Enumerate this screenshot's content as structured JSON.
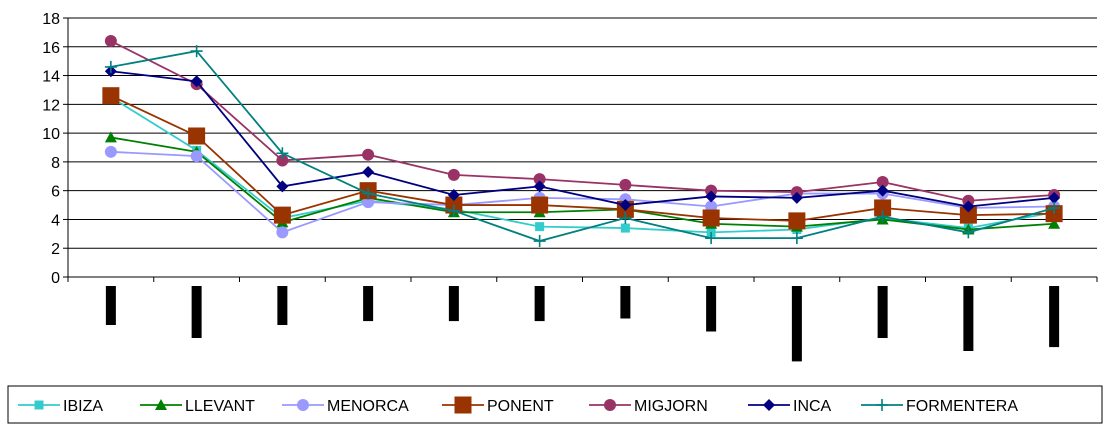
{
  "chart_data": {
    "type": "line",
    "title": "",
    "xlabel": "",
    "ylabel": "",
    "ylim": [
      0,
      18
    ],
    "yticks": [
      0,
      2,
      4,
      6,
      8,
      10,
      12,
      14,
      16,
      18
    ],
    "grid": true,
    "legend_position": "bottom",
    "x_category_count": 12,
    "category_label_bar_heights": [
      3,
      4,
      3,
      2.7,
      2.7,
      2.7,
      2.5,
      3.5,
      5.8,
      4,
      5,
      4.7
    ],
    "series": [
      {
        "name": "IBIZA",
        "color": "#33cccc",
        "marker": "square",
        "values": [
          12.5,
          8.8,
          4.1,
          5.3,
          4.7,
          3.5,
          3.4,
          3.1,
          3.3,
          4.1,
          3.4,
          4.5
        ]
      },
      {
        "name": "LLEVANT",
        "color": "#008000",
        "marker": "triangle",
        "values": [
          9.7,
          8.7,
          3.8,
          5.5,
          4.5,
          4.5,
          4.7,
          3.7,
          3.5,
          4.0,
          3.3,
          3.7
        ]
      },
      {
        "name": "MENORCA",
        "color": "#9999ff",
        "marker": "circle",
        "values": [
          8.7,
          8.4,
          3.1,
          5.2,
          5.0,
          5.5,
          5.4,
          4.9,
          5.8,
          5.8,
          4.8,
          4.9
        ]
      },
      {
        "name": "PONENT",
        "color": "#993300",
        "marker": "square-large",
        "values": [
          12.6,
          9.8,
          4.3,
          6.0,
          5.0,
          5.0,
          4.7,
          4.1,
          3.9,
          4.8,
          4.3,
          4.4
        ]
      },
      {
        "name": "MIGJORN",
        "color": "#993366",
        "marker": "circle",
        "values": [
          16.4,
          13.4,
          8.1,
          8.5,
          7.1,
          6.8,
          6.4,
          6.0,
          5.9,
          6.6,
          5.3,
          5.7
        ]
      },
      {
        "name": "INCA",
        "color": "#000080",
        "marker": "diamond",
        "values": [
          14.3,
          13.6,
          6.3,
          7.3,
          5.7,
          6.3,
          5.0,
          5.6,
          5.5,
          6.0,
          4.9,
          5.5
        ]
      },
      {
        "name": "FORMENTERA",
        "color": "#008080",
        "marker": "plus",
        "values": [
          14.6,
          15.7,
          8.6,
          5.8,
          4.6,
          2.5,
          4.1,
          2.7,
          2.7,
          4.2,
          3.1,
          4.8
        ]
      }
    ]
  }
}
